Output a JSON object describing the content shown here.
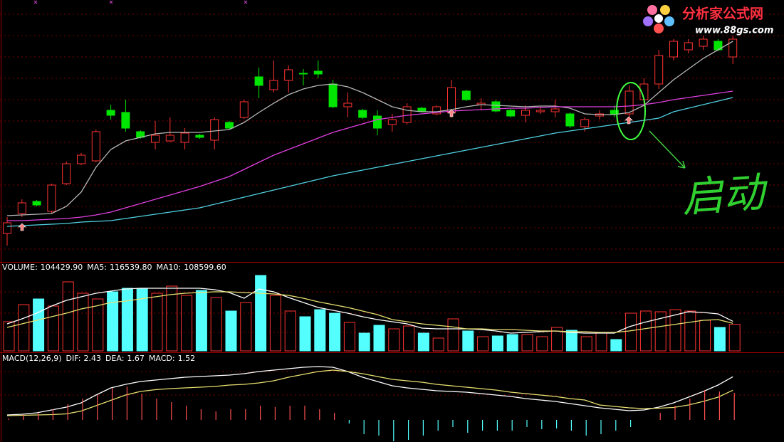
{
  "watermark": {
    "title": "分析家公式网",
    "url": "www.88gs.com"
  },
  "chart_data": [
    {
      "type": "candlestick",
      "annotation": "启动",
      "ylim": [
        3.2,
        40
      ],
      "up_color": "#ff3232",
      "down_color": "#00e600",
      "open": [
        7.2,
        10.0,
        11.7,
        10.3,
        14.2,
        17.0,
        17.4,
        24.5,
        24.2,
        21.5,
        20.0,
        20.2,
        20.0,
        21.0,
        20.3,
        22.8,
        23.5,
        29.2,
        27.4,
        28.7,
        29.7,
        30.0,
        28.2,
        25.0,
        24.5,
        23.7,
        22.5,
        22.8,
        24.8,
        24.0,
        24.2,
        27.2,
        25.3,
        25.7,
        24.5,
        23.8,
        24.3,
        24.3,
        24.0,
        22.2,
        23.7,
        24.5,
        24.0,
        26.0,
        28.2,
        32.0,
        33.0,
        33.5,
        34.2,
        32.0
      ],
      "high": [
        9.5,
        12.0,
        11.9,
        14.2,
        17.3,
        18.5,
        21.8,
        25.3,
        26.0,
        21.7,
        23.0,
        23.5,
        22.0,
        21.2,
        23.5,
        23.0,
        26.0,
        30.5,
        31.5,
        30.8,
        30.3,
        31.5,
        28.8,
        27.0,
        24.7,
        24.5,
        24.0,
        25.5,
        25.0,
        25.2,
        28.8,
        27.4,
        26.2,
        26.0,
        24.7,
        25.2,
        25.0,
        26.0,
        24.2,
        23.5,
        24.5,
        25.2,
        28.0,
        29.0,
        33.0,
        34.5,
        34.5,
        35.0,
        34.5,
        35.0
      ],
      "low": [
        5.5,
        9.5,
        11.0,
        10.1,
        14.0,
        16.8,
        17.2,
        23.2,
        21.5,
        20.5,
        19.0,
        20.0,
        19.0,
        20.5,
        19.0,
        21.8,
        23.3,
        26.2,
        27.0,
        27.0,
        28.0,
        29.0,
        24.8,
        23.5,
        23.3,
        21.0,
        21.5,
        22.5,
        24.2,
        23.8,
        23.5,
        25.8,
        24.5,
        24.2,
        23.5,
        22.8,
        24.0,
        23.5,
        22.0,
        21.5,
        23.2,
        23.5,
        23.0,
        25.0,
        27.5,
        31.5,
        32.5,
        33.0,
        32.8,
        31.0
      ],
      "close": [
        8.7,
        11.5,
        11.2,
        14.0,
        17.0,
        18.2,
        21.5,
        23.8,
        22.0,
        20.7,
        21.0,
        21.0,
        21.3,
        20.7,
        23.2,
        22.0,
        25.7,
        28.0,
        28.7,
        30.2,
        29.6,
        29.6,
        25.0,
        25.5,
        23.5,
        22.0,
        23.2,
        25.0,
        24.4,
        25.0,
        27.7,
        26.0,
        25.5,
        24.4,
        23.7,
        24.5,
        24.5,
        24.7,
        22.3,
        23.2,
        24.0,
        24.0,
        27.2,
        28.2,
        32.2,
        34.2,
        34.0,
        34.5,
        33.0,
        34.5
      ],
      "series": [
        {
          "color": "#b8b8b8",
          "values": [
            9.7,
            9.8,
            9.9,
            10.0,
            11.0,
            13.0,
            16.5,
            19.0,
            20.2,
            20.7,
            21.2,
            21.4,
            21.4,
            21.4,
            21.6,
            21.8,
            22.8,
            24.2,
            25.5,
            26.7,
            27.5,
            28.0,
            28.2,
            27.8,
            27.0,
            26.0,
            25.0,
            24.5,
            24.3,
            24.3,
            24.6,
            25.0,
            25.3,
            25.2,
            25.1,
            25.0,
            25.1,
            25.1,
            24.8,
            24.0,
            23.9,
            23.9,
            24.2,
            25.2,
            27.0,
            28.8,
            30.3,
            31.8,
            33.0,
            34.2
          ]
        },
        {
          "color": "#e040e0",
          "values": [
            9.0,
            9.0,
            9.1,
            9.2,
            9.3,
            9.5,
            9.8,
            10.2,
            10.8,
            11.4,
            12.0,
            12.6,
            13.2,
            13.8,
            14.5,
            15.2,
            16.2,
            17.2,
            18.2,
            19.0,
            19.8,
            20.6,
            21.4,
            22.0,
            22.6,
            23.2,
            23.5,
            23.8,
            24.0,
            24.2,
            24.4,
            24.5,
            24.6,
            24.7,
            24.8,
            24.8,
            24.9,
            25.0,
            25.0,
            25.0,
            25.0,
            25.0,
            25.1,
            25.3,
            25.6,
            26.0,
            26.3,
            26.6,
            26.9,
            27.2
          ]
        },
        {
          "color": "#50d0e0",
          "values": [
            8.2,
            8.3,
            8.4,
            8.5,
            8.6,
            8.8,
            8.9,
            9.0,
            9.3,
            9.6,
            9.9,
            10.2,
            10.5,
            10.8,
            11.3,
            11.8,
            12.3,
            12.8,
            13.3,
            13.8,
            14.3,
            14.8,
            15.3,
            15.7,
            16.1,
            16.5,
            16.9,
            17.3,
            17.7,
            18.1,
            18.5,
            18.9,
            19.3,
            19.7,
            20.1,
            20.5,
            20.9,
            21.3,
            21.6,
            21.9,
            22.2,
            22.5,
            22.8,
            23.1,
            23.4,
            24.3,
            24.8,
            25.3,
            25.8,
            26.3
          ]
        }
      ]
    },
    {
      "type": "bar",
      "ylim": [
        0,
        322000
      ],
      "series": [
        {
          "name": "VOLUME:",
          "type": "bar",
          "color": "#ffffff",
          "up_color": "#ff3232",
          "down_color": "#54ffff",
          "values": [
            114800,
            182000,
            204400,
            176400,
            271600,
            226800,
            204400,
            232400,
            246400,
            243600,
            226800,
            254800,
            218400,
            238000,
            210000,
            156800,
            190400,
            296800,
            218400,
            156800,
            134400,
            162400,
            148400,
            112000,
            70000,
            100800,
            86800,
            98000,
            70000,
            50400,
            126000,
            78400,
            56000,
            58800,
            64400,
            64400,
            56000,
            92400,
            81200,
            56000,
            70000,
            44800,
            148400,
            156800,
            154000,
            162400,
            156800,
            120400,
            92400,
            104429.9
          ],
          "value_labels": [
            null,
            null,
            null,
            null,
            null,
            null,
            null,
            null,
            null,
            null,
            null,
            null,
            null,
            null,
            null,
            null,
            null,
            null,
            null,
            null,
            null,
            null,
            null,
            null,
            null,
            null,
            null,
            null,
            null,
            null,
            null,
            null,
            null,
            null,
            null,
            null,
            null,
            null,
            null,
            null,
            null,
            null,
            null,
            null,
            null,
            null,
            null,
            null,
            null,
            "104429.90"
          ]
        },
        {
          "name": "MA5:",
          "type": "line",
          "color": "#ffffff",
          "values": [
            106400,
            126000,
            148400,
            176400,
            198800,
            212800,
            226800,
            235200,
            243600,
            246400,
            246400,
            246400,
            246400,
            246400,
            240800,
            229600,
            207200,
            243600,
            232400,
            210000,
            190400,
            170800,
            159600,
            148400,
            134400,
            123200,
            114800,
            106400,
            89600,
            86800,
            86800,
            86800,
            84000,
            78400,
            70000,
            72800,
            75600,
            78400,
            72800,
            70000,
            70000,
            70000,
            95200,
            112000,
            126000,
            140000,
            154000,
            151200,
            145600,
            116539.8
          ],
          "value_labels": [
            null,
            null,
            null,
            null,
            null,
            null,
            null,
            null,
            null,
            null,
            null,
            null,
            null,
            null,
            null,
            null,
            null,
            null,
            null,
            null,
            null,
            null,
            null,
            null,
            null,
            null,
            null,
            null,
            null,
            null,
            null,
            null,
            null,
            null,
            null,
            null,
            null,
            null,
            null,
            null,
            null,
            null,
            null,
            null,
            null,
            null,
            null,
            null,
            null,
            "116539.80"
          ]
        },
        {
          "name": "MA10:",
          "type": "line",
          "color": "#e8e070",
          "values": [
            92400,
            106400,
            120400,
            134400,
            148400,
            165200,
            176400,
            190400,
            196000,
            204400,
            212800,
            221200,
            226800,
            229600,
            232400,
            232400,
            229600,
            226800,
            224000,
            218400,
            207200,
            193200,
            182000,
            170800,
            156800,
            142800,
            123200,
            114800,
            106400,
            100800,
            95200,
            86800,
            86800,
            84000,
            84000,
            81200,
            78400,
            78400,
            75600,
            75600,
            72800,
            72800,
            78400,
            86800,
            95200,
            103600,
            112000,
            120400,
            123200,
            108599.6
          ],
          "value_labels": [
            null,
            null,
            null,
            null,
            null,
            null,
            null,
            null,
            null,
            null,
            null,
            null,
            null,
            null,
            null,
            null,
            null,
            null,
            null,
            null,
            null,
            null,
            null,
            null,
            null,
            null,
            null,
            null,
            null,
            null,
            null,
            null,
            null,
            null,
            null,
            null,
            null,
            null,
            null,
            null,
            null,
            null,
            null,
            null,
            null,
            null,
            null,
            null,
            null,
            "108599.60"
          ]
        }
      ]
    },
    {
      "type": "line",
      "title": "MACD(12,26,9)",
      "ylim": [
        -1.24,
        3.72
      ],
      "series": [
        {
          "name": "DIF:",
          "type": "line",
          "color": "#ffffff",
          "values": [
            0.28,
            0.32,
            0.4,
            0.56,
            0.72,
            0.96,
            1.4,
            1.8,
            2.0,
            2.16,
            2.24,
            2.32,
            2.4,
            2.44,
            2.48,
            2.52,
            2.6,
            2.72,
            2.8,
            2.88,
            2.96,
            3.0,
            2.96,
            2.72,
            2.4,
            2.16,
            1.92,
            1.8,
            1.72,
            1.64,
            1.6,
            1.56,
            1.48,
            1.4,
            1.32,
            1.2,
            1.12,
            1.04,
            0.92,
            0.8,
            0.68,
            0.6,
            0.52,
            0.56,
            0.72,
            0.96,
            1.28,
            1.6,
            1.96,
            2.43
          ]
        },
        {
          "name": "DEA:",
          "type": "line",
          "color": "#e8e070",
          "values": [
            0.24,
            0.26,
            0.28,
            0.3,
            0.34,
            0.5,
            0.8,
            1.1,
            1.4,
            1.6,
            1.7,
            1.76,
            1.8,
            1.84,
            1.88,
            1.96,
            2.0,
            2.08,
            2.2,
            2.4,
            2.56,
            2.72,
            2.8,
            2.72,
            2.6,
            2.44,
            2.28,
            2.2,
            2.12,
            2.0,
            1.92,
            1.84,
            1.76,
            1.68,
            1.56,
            1.48,
            1.4,
            1.32,
            1.2,
            1.12,
            0.84,
            0.76,
            0.68,
            0.64,
            0.66,
            0.7,
            0.84,
            1.04,
            1.28,
            1.67
          ]
        },
        {
          "name": "MACD:",
          "type": "bar",
          "color": "#ff40ff",
          "up_color": "#ff5050",
          "down_color": "#54ffff",
          "values": [
            0.08,
            0.28,
            0.4,
            0.6,
            0.88,
            1.2,
            1.4,
            1.8,
            1.88,
            1.48,
            1.2,
            1.0,
            0.8,
            0.6,
            0.48,
            0.6,
            0.6,
            0.8,
            0.72,
            0.8,
            0.8,
            0.6,
            0.4,
            -0.2,
            -0.8,
            -0.88,
            -1.2,
            -1.12,
            -0.88,
            -0.6,
            -0.4,
            -0.72,
            -0.6,
            -0.6,
            -0.6,
            -0.4,
            -0.52,
            -0.48,
            -0.6,
            -0.88,
            -0.8,
            -0.6,
            -0.4,
            0.0,
            0.4,
            0.8,
            1.2,
            1.68,
            1.6,
            1.52
          ]
        }
      ]
    }
  ]
}
